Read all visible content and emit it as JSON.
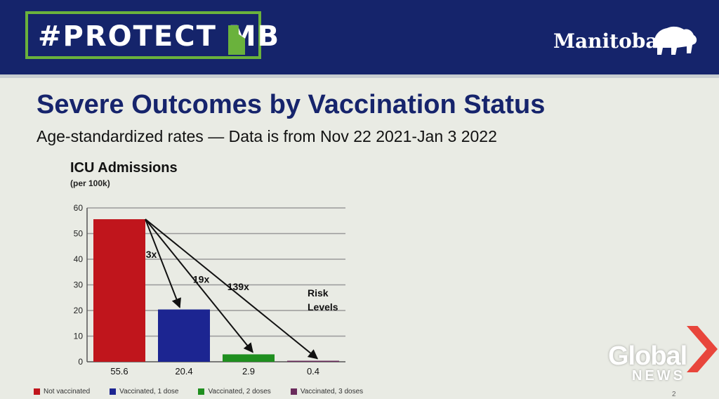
{
  "header": {
    "hashtag_prefix": "#PROTECT ",
    "hashtag_bold": "MB",
    "brand": "Manitoba",
    "colors": {
      "band": "#15246b",
      "accent_green": "#6ab23c"
    },
    "icons": [
      "manitoba-map-icon",
      "bison-icon"
    ]
  },
  "slide": {
    "title": "Severe Outcomes by Vaccination Status",
    "subtitle": "Age-standardized  rates  —  Data is from Nov 22 2021-Jan 3 2022",
    "page_number": "2"
  },
  "chart_data": {
    "type": "bar",
    "title": "ICU Admissions",
    "unit_label": "(per 100k)",
    "categories": [
      "Not vaccinated",
      "Vaccinated, 1 dose",
      "Vaccinated, 2 doses",
      "Vaccinated, 3 doses"
    ],
    "values": [
      55.6,
      20.4,
      2.9,
      0.4
    ],
    "value_labels": [
      "55.6",
      "20.4",
      "2.9",
      "0.4"
    ],
    "colors": [
      "#c0151c",
      "#1c2591",
      "#1f8f1f",
      "#6a2b5c"
    ],
    "ylim": [
      0,
      60
    ],
    "yticks": [
      0,
      10,
      20,
      30,
      40,
      50,
      60
    ],
    "ytick_labels": [
      "0",
      "10",
      "20",
      "30",
      "40",
      "50",
      "60"
    ],
    "grid": true,
    "legend_position": "bottom",
    "annotations": [
      {
        "label": "3x",
        "target_index": 1
      },
      {
        "label": "19x",
        "target_index": 2
      },
      {
        "label": "139x",
        "target_index": 3
      }
    ],
    "side_note": "Risk\nLevels"
  },
  "watermark": {
    "word": "Global",
    "sub": "NEWS",
    "color": "#e8463c"
  }
}
